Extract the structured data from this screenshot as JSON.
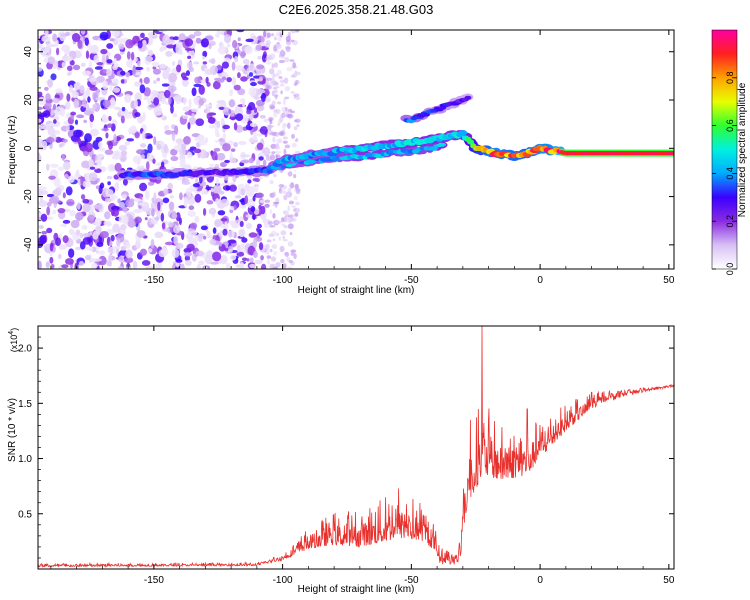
{
  "figure_title": "C2E6.2025.358.21.48.G03",
  "colors": {
    "line": "#e8302c",
    "spectrogram_stops": [
      "#ffffff",
      "#d8c0f5",
      "#8a2be2",
      "#3a00ff",
      "#00aaff",
      "#00f0e0",
      "#30ff30",
      "#e8ff00",
      "#ffa000",
      "#ff2020",
      "#ff00a0"
    ]
  },
  "chart_data": [
    {
      "type": "heatmap",
      "name": "spectrogram",
      "xlabel": "Height of straight line (km)",
      "ylabel": "Frequency (Hz)",
      "xlim": [
        -195,
        52
      ],
      "ylim": [
        -50,
        49
      ],
      "xticks": [
        -150,
        -100,
        -50,
        0,
        50
      ],
      "xtick_labels": [
        "-150",
        "-100",
        "-50",
        "0",
        "50"
      ],
      "yticks": [
        -40,
        -20,
        0,
        20,
        40
      ],
      "ytick_labels": [
        "-40",
        "-20",
        "0",
        "20",
        "40"
      ],
      "noise_region_x": [
        -195,
        -106
      ],
      "ridge": [
        {
          "x": -160,
          "f": -11.0,
          "amp": 0.3
        },
        {
          "x": -150,
          "f": -11.0,
          "amp": 0.35
        },
        {
          "x": -140,
          "f": -10.5,
          "amp": 0.3
        },
        {
          "x": -125,
          "f": -10.0,
          "amp": 0.25
        },
        {
          "x": -112,
          "f": -9.5,
          "amp": 0.3
        },
        {
          "x": -105,
          "f": -9.0,
          "amp": 0.35
        },
        {
          "x": -100,
          "f": -5.0,
          "amp": 0.4
        },
        {
          "x": -90,
          "f": -3.0,
          "amp": 0.4
        },
        {
          "x": -80,
          "f": -1.5,
          "amp": 0.4
        },
        {
          "x": -70,
          "f": 0.0,
          "amp": 0.45
        },
        {
          "x": -60,
          "f": 1.0,
          "amp": 0.45
        },
        {
          "x": -50,
          "f": 2.5,
          "amp": 0.45
        },
        {
          "x": -40,
          "f": 4.0,
          "amp": 0.45
        },
        {
          "x": -30,
          "f": 6.0,
          "amp": 0.45
        },
        {
          "x": -25,
          "f": 0.0,
          "amp": 0.7
        },
        {
          "x": -18,
          "f": -2.0,
          "amp": 0.85
        },
        {
          "x": -10,
          "f": -3.0,
          "amp": 0.8
        },
        {
          "x": -5,
          "f": -2.0,
          "amp": 0.8
        },
        {
          "x": 0,
          "f": 0.0,
          "amp": 0.85
        },
        {
          "x": 5,
          "f": -1.0,
          "amp": 0.85
        },
        {
          "x": 10,
          "f": -2.0,
          "amp": 0.95
        },
        {
          "x": 30,
          "f": -2.0,
          "amp": 0.95
        },
        {
          "x": 50,
          "f": -2.0,
          "amp": 0.95
        }
      ],
      "branch": [
        {
          "x": -50,
          "f": 12.0,
          "amp": 0.35
        },
        {
          "x": -40,
          "f": 16.0,
          "amp": 0.3
        },
        {
          "x": -28,
          "f": 21.0,
          "amp": 0.25
        }
      ],
      "secondary": [
        {
          "x": -110,
          "f": -10.0,
          "amp": 0.4
        },
        {
          "x": -95,
          "f": -6.0,
          "amp": 0.4
        },
        {
          "x": -80,
          "f": -4.0,
          "amp": 0.4
        },
        {
          "x": -65,
          "f": -3.0,
          "amp": 0.45
        },
        {
          "x": -50,
          "f": -1.0,
          "amp": 0.4
        },
        {
          "x": -38,
          "f": 1.0,
          "amp": 0.45
        }
      ],
      "colorbar": {
        "label": "Normalized spectral amplitude",
        "range": [
          0,
          1
        ],
        "ticks": [
          0.0,
          0.2,
          0.4,
          0.6,
          0.8
        ],
        "tick_labels": [
          "0.0",
          "0.2",
          "0.4",
          "0.6",
          "0.8"
        ]
      }
    },
    {
      "type": "line",
      "name": "snr",
      "xlabel": "Height of straight line (km)",
      "ylabel": "SNR (10 * v/v)",
      "y_multiplier": "(x10",
      "y_multiplier_exp": "4",
      "y_multiplier_close": ")",
      "xlim": [
        -195,
        52
      ],
      "ylim": [
        0,
        2.2
      ],
      "xticks": [
        -150,
        -100,
        -50,
        0,
        50
      ],
      "xtick_labels": [
        "-150",
        "-100",
        "-50",
        "0",
        "50"
      ],
      "yticks": [
        0.5,
        1.0,
        1.5,
        2.0
      ],
      "ytick_labels": [
        "0.5",
        "1.0",
        "1.5",
        "2.0"
      ],
      "series": [
        {
          "name": "SNR",
          "envelope": [
            {
              "x": -195,
              "base": 0.02,
              "amp": 0.03
            },
            {
              "x": -110,
              "base": 0.03,
              "amp": 0.03
            },
            {
              "x": -100,
              "base": 0.08,
              "amp": 0.06
            },
            {
              "x": -90,
              "base": 0.18,
              "amp": 0.2
            },
            {
              "x": -80,
              "base": 0.22,
              "amp": 0.3
            },
            {
              "x": -70,
              "base": 0.2,
              "amp": 0.35
            },
            {
              "x": -60,
              "base": 0.25,
              "amp": 0.4
            },
            {
              "x": -55,
              "base": 0.28,
              "amp": 0.45
            },
            {
              "x": -45,
              "base": 0.25,
              "amp": 0.35
            },
            {
              "x": -38,
              "base": 0.1,
              "amp": 0.15
            },
            {
              "x": -32,
              "base": 0.08,
              "amp": 0.1
            },
            {
              "x": -28,
              "base": 0.6,
              "amp": 0.6
            },
            {
              "x": -22,
              "base": 0.85,
              "amp": 0.7
            },
            {
              "x": -15,
              "base": 0.8,
              "amp": 0.5
            },
            {
              "x": -5,
              "base": 0.85,
              "amp": 0.45
            },
            {
              "x": 0,
              "base": 1.0,
              "amp": 0.35
            },
            {
              "x": 10,
              "base": 1.25,
              "amp": 0.25
            },
            {
              "x": 20,
              "base": 1.45,
              "amp": 0.15
            },
            {
              "x": 30,
              "base": 1.58,
              "amp": 0.06
            },
            {
              "x": 40,
              "base": 1.62,
              "amp": 0.04
            },
            {
              "x": 52,
              "base": 1.66,
              "amp": 0.02
            }
          ],
          "peaks": [
            {
              "x": -22.5,
              "y": 2.2
            },
            {
              "x": -24.0,
              "y": 1.45
            },
            {
              "x": -27.0,
              "y": 1.35
            },
            {
              "x": -5.0,
              "y": 1.45
            },
            {
              "x": -55.0,
              "y": 0.73
            },
            {
              "x": -60.0,
              "y": 0.65
            },
            {
              "x": -82.0,
              "y": 0.42
            },
            {
              "x": 20.0,
              "y": 1.6
            }
          ]
        }
      ]
    }
  ]
}
